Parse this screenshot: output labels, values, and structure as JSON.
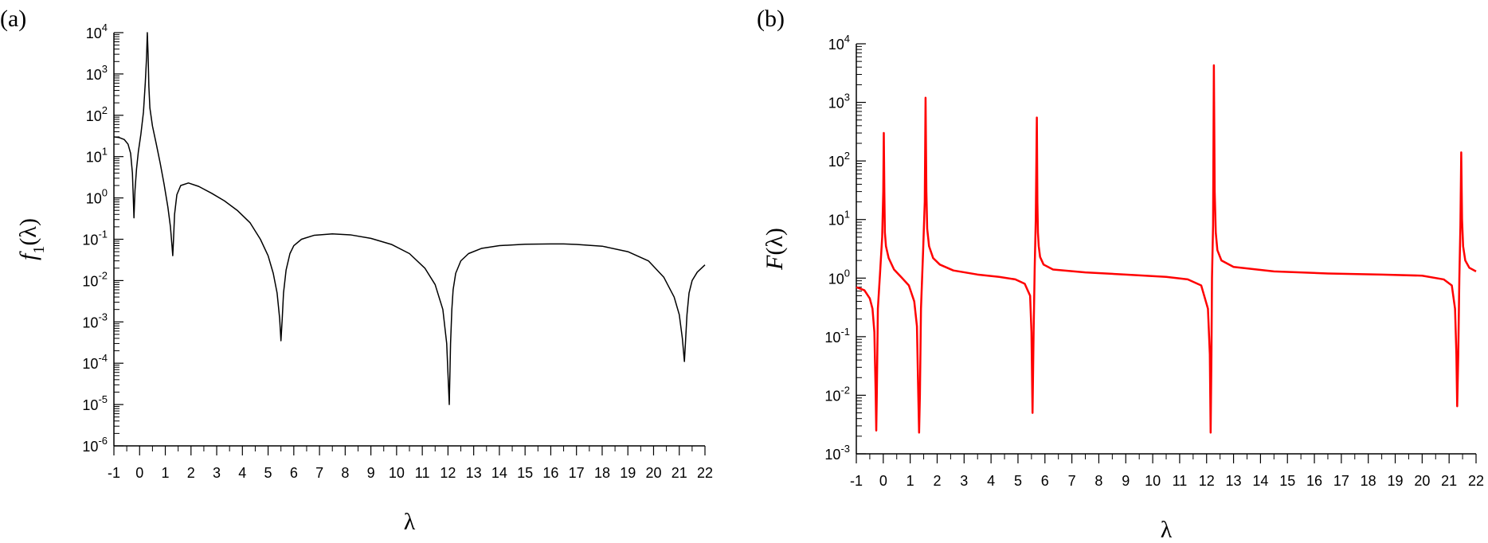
{
  "chart_data": [
    {
      "type": "line",
      "panel_label": "(a)",
      "title": "",
      "xlabel": "λ",
      "ylabel_main": "f",
      "ylabel_sub": "1",
      "ylabel_arg": "(λ)",
      "yscale": "log",
      "xlim": [
        -1,
        22
      ],
      "ylim_exp": [
        -6,
        4
      ],
      "xticks": [
        "-1",
        "0",
        "1",
        "2",
        "3",
        "4",
        "5",
        "6",
        "7",
        "8",
        "9",
        "10",
        "11",
        "12",
        "13",
        "14",
        "15",
        "16",
        "17",
        "18",
        "19",
        "20",
        "21",
        "22"
      ],
      "yticks": [
        {
          "base": "10",
          "exp": "-6"
        },
        {
          "base": "10",
          "exp": "-5"
        },
        {
          "base": "10",
          "exp": "-4"
        },
        {
          "base": "10",
          "exp": "-3"
        },
        {
          "base": "10",
          "exp": "-2"
        },
        {
          "base": "10",
          "exp": "-1"
        },
        {
          "base": "10",
          "exp": "0"
        },
        {
          "base": "10",
          "exp": "1"
        },
        {
          "base": "10",
          "exp": "2"
        },
        {
          "base": "10",
          "exp": "3"
        },
        {
          "base": "10",
          "exp": "4"
        }
      ],
      "color": "#000000",
      "series": [
        {
          "name": "f1",
          "x": [
            -1.0,
            -0.8,
            -0.6,
            -0.45,
            -0.35,
            -0.28,
            -0.25,
            -0.22,
            -0.18,
            -0.12,
            -0.05,
            0.05,
            0.15,
            0.22,
            0.27,
            0.3,
            0.33,
            0.36,
            0.4,
            0.5,
            0.65,
            0.8,
            0.95,
            1.1,
            1.2,
            1.26,
            1.29,
            1.32,
            1.36,
            1.45,
            1.6,
            1.9,
            2.3,
            2.8,
            3.3,
            3.8,
            4.3,
            4.7,
            5.0,
            5.2,
            5.35,
            5.45,
            5.5,
            5.55,
            5.6,
            5.7,
            5.85,
            6.0,
            6.3,
            6.8,
            7.5,
            8.2,
            9.0,
            9.8,
            10.5,
            11.1,
            11.5,
            11.8,
            11.95,
            12.05,
            12.1,
            12.15,
            12.2,
            12.3,
            12.5,
            12.8,
            13.3,
            14.0,
            15.0,
            16.0,
            16.5,
            17.0,
            18.0,
            19.0,
            19.8,
            20.4,
            20.8,
            21.0,
            21.12,
            21.2,
            21.25,
            21.3,
            21.38,
            21.5,
            21.7,
            22.0
          ],
          "y": [
            30,
            29,
            26,
            20,
            12,
            4,
            1.2,
            0.33,
            1.5,
            5,
            13,
            35,
            120,
            600,
            2500,
            10000,
            3000,
            500,
            150,
            55,
            20,
            7,
            2.2,
            0.6,
            0.2,
            0.07,
            0.04,
            0.1,
            0.4,
            1.2,
            2.0,
            2.3,
            1.9,
            1.3,
            0.85,
            0.5,
            0.25,
            0.1,
            0.04,
            0.015,
            0.005,
            0.0012,
            0.00035,
            0.0012,
            0.005,
            0.018,
            0.045,
            0.07,
            0.1,
            0.125,
            0.135,
            0.128,
            0.105,
            0.075,
            0.045,
            0.02,
            0.008,
            0.002,
            0.0003,
            1e-05,
            0.0003,
            0.002,
            0.006,
            0.015,
            0.03,
            0.045,
            0.06,
            0.07,
            0.076,
            0.077,
            0.077,
            0.075,
            0.068,
            0.05,
            0.03,
            0.012,
            0.004,
            0.0015,
            0.0004,
            0.00011,
            0.0004,
            0.0015,
            0.005,
            0.01,
            0.016,
            0.024
          ]
        }
      ]
    },
    {
      "type": "line",
      "panel_label": "(b)",
      "title": "",
      "xlabel": "λ",
      "ylabel_main": "F",
      "ylabel_sub": "",
      "ylabel_arg": "(λ)",
      "yscale": "log",
      "xlim": [
        -1,
        22
      ],
      "ylim_exp": [
        -3,
        4
      ],
      "xticks": [
        "-1",
        "0",
        "1",
        "2",
        "3",
        "4",
        "5",
        "6",
        "7",
        "8",
        "9",
        "10",
        "11",
        "12",
        "13",
        "14",
        "15",
        "16",
        "17",
        "18",
        "19",
        "20",
        "21",
        "22"
      ],
      "yticks": [
        {
          "base": "10",
          "exp": "-3"
        },
        {
          "base": "10",
          "exp": "-2"
        },
        {
          "base": "10",
          "exp": "-1"
        },
        {
          "base": "10",
          "exp": "0"
        },
        {
          "base": "10",
          "exp": "1"
        },
        {
          "base": "10",
          "exp": "2"
        },
        {
          "base": "10",
          "exp": "3"
        },
        {
          "base": "10",
          "exp": "4"
        }
      ],
      "color": "#ff0000",
      "series": [
        {
          "name": "F",
          "x": [
            -1.0,
            -0.7,
            -0.5,
            -0.4,
            -0.33,
            -0.28,
            -0.26,
            -0.24,
            -0.2,
            -0.12,
            -0.04,
            0.0,
            0.02,
            0.04,
            0.06,
            0.1,
            0.2,
            0.4,
            0.7,
            0.95,
            1.15,
            1.25,
            1.3,
            1.33,
            1.36,
            1.4,
            1.48,
            1.54,
            1.57,
            1.6,
            1.63,
            1.7,
            1.85,
            2.1,
            2.6,
            3.5,
            4.3,
            4.9,
            5.25,
            5.45,
            5.5,
            5.54,
            5.58,
            5.62,
            5.66,
            5.7,
            5.72,
            5.74,
            5.77,
            5.82,
            5.95,
            6.3,
            7.5,
            9.0,
            10.5,
            11.3,
            11.8,
            12.05,
            12.12,
            12.15,
            12.18,
            12.2,
            12.24,
            12.27,
            12.3,
            12.34,
            12.4,
            12.55,
            13.0,
            14.5,
            16.5,
            18.5,
            20.0,
            20.8,
            21.1,
            21.22,
            21.27,
            21.3,
            21.34,
            21.38,
            21.42,
            21.45,
            21.48,
            21.52,
            21.6,
            21.75,
            22.0
          ],
          "y": [
            0.7,
            0.62,
            0.45,
            0.3,
            0.12,
            0.01,
            0.0025,
            0.01,
            0.3,
            1.2,
            5,
            30,
            300,
            30,
            6,
            3.5,
            2.2,
            1.4,
            1.0,
            0.75,
            0.4,
            0.15,
            0.01,
            0.0023,
            0.01,
            0.3,
            3,
            20,
            1200,
            30,
            7,
            3.5,
            2.2,
            1.7,
            1.35,
            1.15,
            1.05,
            0.95,
            0.8,
            0.5,
            0.12,
            0.005,
            0.12,
            1.5,
            10,
            550,
            20,
            6,
            3.5,
            2.3,
            1.7,
            1.4,
            1.25,
            1.15,
            1.05,
            0.95,
            0.75,
            0.3,
            0.05,
            0.0023,
            0.05,
            1,
            8,
            4300,
            30,
            6,
            3,
            2,
            1.55,
            1.3,
            1.2,
            1.15,
            1.1,
            0.95,
            0.75,
            0.3,
            0.05,
            0.0065,
            0.05,
            1,
            8,
            140,
            10,
            3.5,
            2.0,
            1.5,
            1.3
          ]
        }
      ]
    }
  ]
}
